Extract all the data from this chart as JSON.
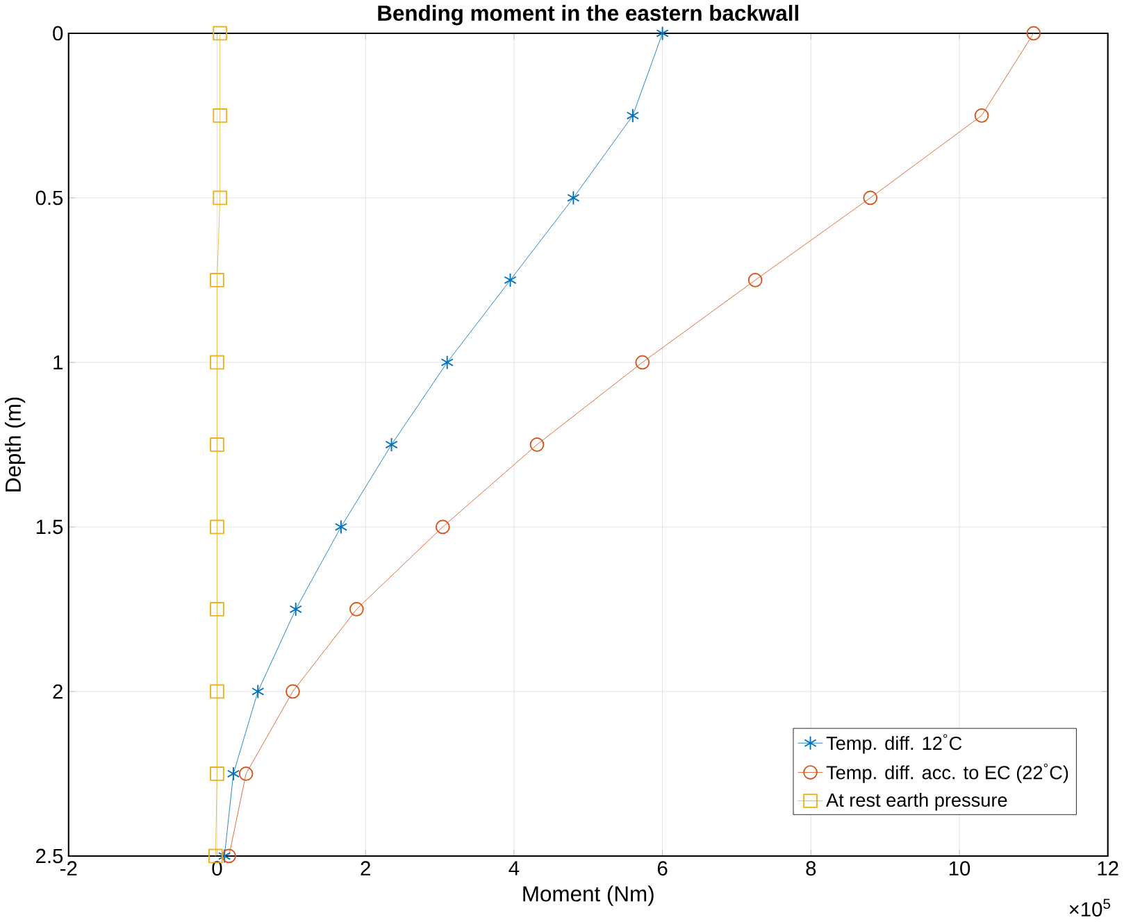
{
  "chart_data": {
    "type": "line",
    "title": "Bending moment in the eastern backwall",
    "xlabel": "Moment (Nm)",
    "ylabel": "Depth (m)",
    "annotations": [
      "×10$^{5}$"
    ],
    "series": [
      {
        "name": "Temp. diff. 12$^{°}$C",
        "color": "#0072bd",
        "marker": "cross",
        "x": [
          6.0,
          5.6,
          4.8,
          3.95,
          3.1,
          2.35,
          1.67,
          1.06,
          0.55,
          0.22,
          0.1
        ],
        "values": [
          0,
          0.25,
          0.5,
          0.75,
          1,
          1.25,
          1.5,
          1.75,
          2,
          2.25,
          2.5
        ]
      },
      {
        "name": "Temp. diff. acc. to EC (22$^{°}$C)",
        "color": "#d95319",
        "marker": "circle",
        "x": [
          11.0,
          10.3,
          8.8,
          7.25,
          5.73,
          4.31,
          3.04,
          1.88,
          1.02,
          0.39,
          0.16
        ],
        "values": [
          0,
          0.25,
          0.5,
          0.75,
          1,
          1.25,
          1.5,
          1.75,
          2,
          2.25,
          2.5
        ]
      },
      {
        "name": "At rest earth pressure",
        "color": "#edb120",
        "marker": "square",
        "x": [
          0.04,
          0.04,
          0.04,
          0,
          0,
          0,
          0,
          0,
          0,
          0,
          -0.02
        ],
        "values": [
          0,
          0.25,
          0.5,
          0.75,
          1,
          1.25,
          1.5,
          1.75,
          2,
          2.25,
          2.5
        ]
      }
    ],
    "xlim": [
      -2,
      12
    ],
    "xticks": [
      -2,
      0,
      2,
      4,
      6,
      8,
      10,
      12
    ],
    "ylim": [
      2.5,
      0
    ],
    "yticks": [
      0,
      0.5,
      1,
      1.5,
      2,
      2.5
    ],
    "grid": true,
    "legend": "bottom right",
    "line_style": "solid"
  }
}
